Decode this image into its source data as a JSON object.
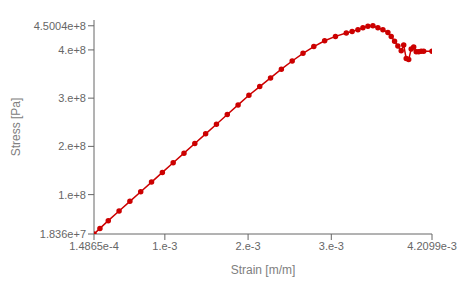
{
  "chart_data": {
    "type": "line",
    "xlabel": "Strain [m/m]",
    "ylabel": "Stress [Pa]",
    "color": "#cc0000",
    "marker": "circle",
    "grid": false,
    "xlim": [
      0.00014865,
      0.0042099
    ],
    "ylim": [
      18360000.0,
      462000000.0
    ],
    "xticks": [
      {
        "value": 0.00014865,
        "label": "1.4865e-4"
      },
      {
        "value": 0.001,
        "label": "1.e-3"
      },
      {
        "value": 0.002,
        "label": "2.e-3"
      },
      {
        "value": 0.003,
        "label": "3.e-3"
      },
      {
        "value": 0.0042099,
        "label": "4.2099e-3"
      }
    ],
    "yticks": [
      {
        "value": 18360000.0,
        "label": "1.836e+7"
      },
      {
        "value": 100000000.0,
        "label": "1.e+8"
      },
      {
        "value": 200000000.0,
        "label": "2.e+8"
      },
      {
        "value": 300000000.0,
        "label": "3.e+8"
      },
      {
        "value": 400000000.0,
        "label": "4.e+8"
      },
      {
        "value": 450040000.0,
        "label": "4.5004e+8"
      }
    ],
    "x": [
      0.00014865,
      0.00022,
      0.00032,
      0.00045,
      0.00058,
      0.00071,
      0.00084,
      0.00097,
      0.0011,
      0.00123,
      0.00136,
      0.00149,
      0.00162,
      0.00175,
      0.00188,
      0.00201,
      0.00214,
      0.00227,
      0.0024,
      0.00253,
      0.00266,
      0.00279,
      0.00292,
      0.00305,
      0.00318,
      0.00325,
      0.00332,
      0.00338,
      0.00344,
      0.0035,
      0.00356,
      0.00362,
      0.00368,
      0.00372,
      0.00376,
      0.0038,
      0.00384,
      0.00387,
      0.0039,
      0.00393,
      0.00396,
      0.00399,
      0.00402,
      0.00405,
      0.00408,
      0.00411,
      0.0042099
    ],
    "values": [
      18360000.0,
      30000000.0,
      46000000.0,
      66000000.0,
      86000000.0,
      106000000.0,
      126000000.0,
      146000000.0,
      166000000.0,
      186000000.0,
      206000000.0,
      226000000.0,
      246000000.0,
      266000000.0,
      286000000.0,
      306000000.0,
      324000000.0,
      342000000.0,
      360000000.0,
      377000000.0,
      393000000.0,
      407000000.0,
      419000000.0,
      428000000.0,
      435000000.0,
      438000000.0,
      442000000.0,
      446000000.0,
      449000000.0,
      450040000.0,
      446000000.0,
      442000000.0,
      436000000.0,
      428000000.0,
      418000000.0,
      408000000.0,
      398000000.0,
      410000000.0,
      382000000.0,
      380000000.0,
      402000000.0,
      406000000.0,
      396000000.0,
      396000000.0,
      397000000.0,
      397000000.0,
      397000000.0
    ]
  }
}
